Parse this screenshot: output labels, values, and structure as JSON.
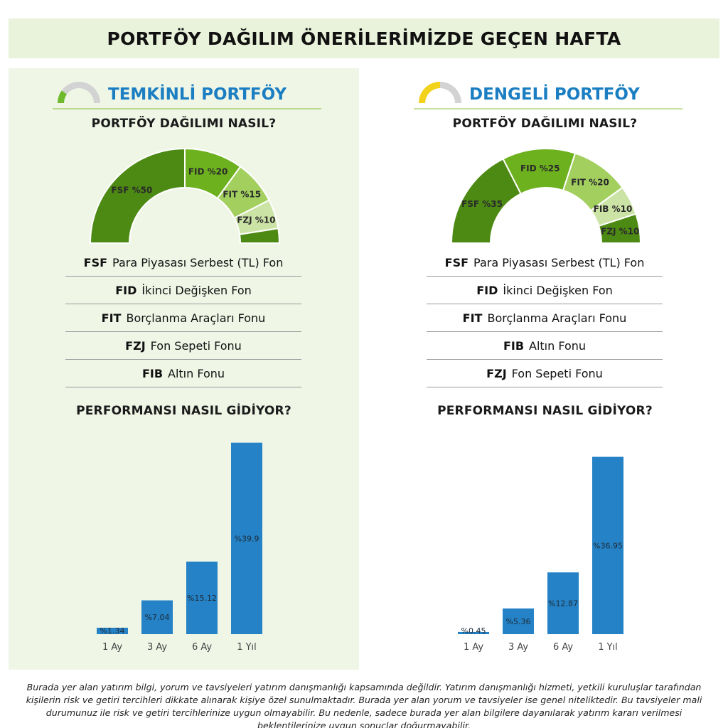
{
  "page_title": "PORTFÖY DAĞILIM ÖNERİLERİMİZDE GEÇEN HAFTA",
  "disclaimer": "Burada yer alan yatırım bilgi, yorum ve tavsiyeleri yatırım danışmanlığı kapsamında değildir. Yatırım danışmanlığı hizmeti, yetkili kuruluşlar tarafından kişilerin risk ve getiri tercihleri dikkate alınarak kişiye özel sunulmaktadır. Burada yer alan yorum ve tavsiyeler ise genel niteliktedir. Bu tavsiyeler mali durumunuz ile risk ve getiri tercihlerinize uygun olmayabilir. Bu nedenle, sadece burada yer alan bilgilere dayanılarak yatırım kararı verilmesi beklentilerinize uygun sonuçlar doğurmayabilir.",
  "portfolios": [
    {
      "name": "TEMKİNLİ PORTFÖY",
      "gauge_color": "#6fba2c",
      "gauge_level": 0.2,
      "allocation_heading": "PORTFÖY DAĞILIMI NASIL?",
      "performance_heading": "PERFORMANSI NASIL GİDİYOR?",
      "legend": [
        {
          "code": "FSF",
          "name": "Para Piyasası Serbest (TL) Fon"
        },
        {
          "code": "FID",
          "name": "İkinci Değişken Fon"
        },
        {
          "code": "FIT",
          "name": "Borçlanma Araçları Fonu"
        },
        {
          "code": "FZJ",
          "name": "Fon Sepeti Fonu"
        },
        {
          "code": "FIB",
          "name": "Altın Fonu"
        }
      ]
    },
    {
      "name": "DENGELİ PORTFÖY",
      "gauge_color": "#f2d21a",
      "gauge_level": 0.5,
      "allocation_heading": "PORTFÖY DAĞILIMI NASIL?",
      "performance_heading": "PERFORMANSI NASIL GİDİYOR?",
      "legend": [
        {
          "code": "FSF",
          "name": "Para Piyasası Serbest (TL) Fon"
        },
        {
          "code": "FID",
          "name": "İkinci Değişken Fon"
        },
        {
          "code": "FIT",
          "name": "Borçlanma Araçları Fonu"
        },
        {
          "code": "FIB",
          "name": "Altın Fonu"
        },
        {
          "code": "FZJ",
          "name": "Fon Sepeti Fonu"
        }
      ]
    }
  ],
  "chart_data": [
    {
      "type": "pie",
      "subtype": "half-donut",
      "labels": [
        "FSF %50",
        "FID %20",
        "FIT %15",
        "FZJ %10",
        ""
      ],
      "categories": [
        "FSF",
        "FID",
        "FIT",
        "FZJ",
        "FIB"
      ],
      "values": [
        50,
        20,
        15,
        10,
        5
      ],
      "colors": [
        "#4d8a14",
        "#6db11f",
        "#a3cf5f",
        "#cce3a6",
        "#4d8a14"
      ]
    },
    {
      "type": "pie",
      "subtype": "half-donut",
      "labels": [
        "FSF %35",
        "FID %25",
        "FIT %20",
        "FIB %10",
        "FZJ %10"
      ],
      "categories": [
        "FSF",
        "FID",
        "FIT",
        "FIB",
        "FZJ"
      ],
      "values": [
        35,
        25,
        20,
        10,
        10
      ],
      "colors": [
        "#4d8a14",
        "#6db11f",
        "#a3cf5f",
        "#cce3a6",
        "#4d8a14"
      ]
    },
    {
      "type": "bar",
      "categories": [
        "1 Ay",
        "3 Ay",
        "6 Ay",
        "1 Yıl"
      ],
      "values": [
        1.34,
        7.04,
        15.12,
        39.9
      ],
      "value_labels": [
        "%1.34",
        "%7.04",
        "%15.12",
        "%39.9"
      ],
      "color": "#2582c6",
      "ylim": [
        0,
        40
      ]
    },
    {
      "type": "bar",
      "categories": [
        "1 Ay",
        "3 Ay",
        "6 Ay",
        "1 Yıl"
      ],
      "values": [
        0.45,
        5.36,
        12.87,
        36.95
      ],
      "value_labels": [
        "%0.45",
        "%5.36",
        "%12.87",
        "%36.95"
      ],
      "color": "#2582c6",
      "ylim": [
        0,
        40
      ]
    }
  ]
}
